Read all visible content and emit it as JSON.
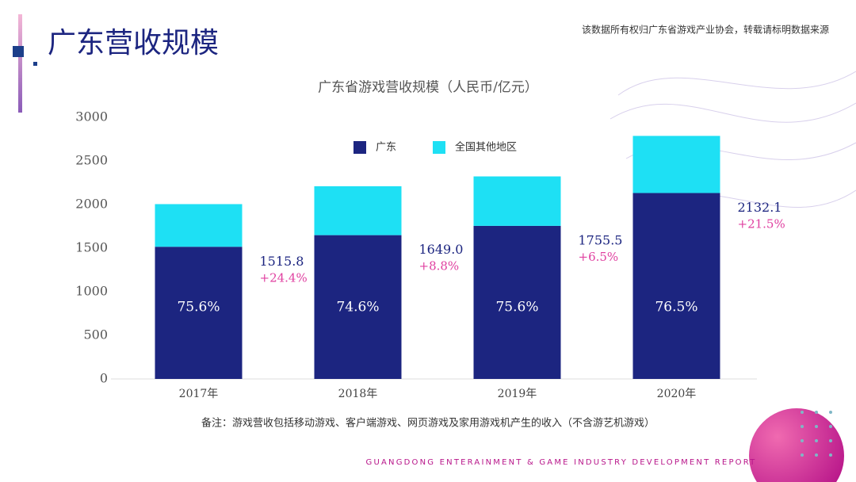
{
  "page_title": "广东营收规模",
  "source_note": "该数据所有权归广东省游戏产业协会，转载请标明数据来源",
  "footnote": "备注：游戏营收包括移动游戏、客户端游戏、网页游戏及家用游戏机产生的收入（不含游艺机游戏）",
  "footer": "GUANGDONG ENTERAINMENT & GAME INDUSTRY DEVELOPMENT REPORT",
  "chart_data": {
    "type": "stacked_bar",
    "title": "广东省游戏营收规模（人民币/亿元）",
    "categories": [
      "2017年",
      "2018年",
      "2019年",
      "2020年"
    ],
    "series": [
      {
        "name": "广东",
        "color": "#1c2580",
        "values": [
          1515.8,
          1649.0,
          1755.5,
          2132.1
        ],
        "value_labels": [
          "1515.8",
          "1649.0",
          "1755.5",
          "2132.1"
        ]
      },
      {
        "name": "全国其他地区",
        "color": "#1ee0f4",
        "values": [
          489,
          561,
          567,
          655
        ]
      }
    ],
    "growth_labels": [
      "+24.4%",
      "+8.8%",
      "+6.5%",
      "+21.5%"
    ],
    "share_labels": [
      "75.6%",
      "74.6%",
      "75.6%",
      "76.5%"
    ],
    "ylim": [
      0,
      3000
    ],
    "yticks": [
      0,
      500,
      1000,
      1500,
      2000,
      2500,
      3000
    ],
    "grid": false,
    "legend": "top"
  }
}
